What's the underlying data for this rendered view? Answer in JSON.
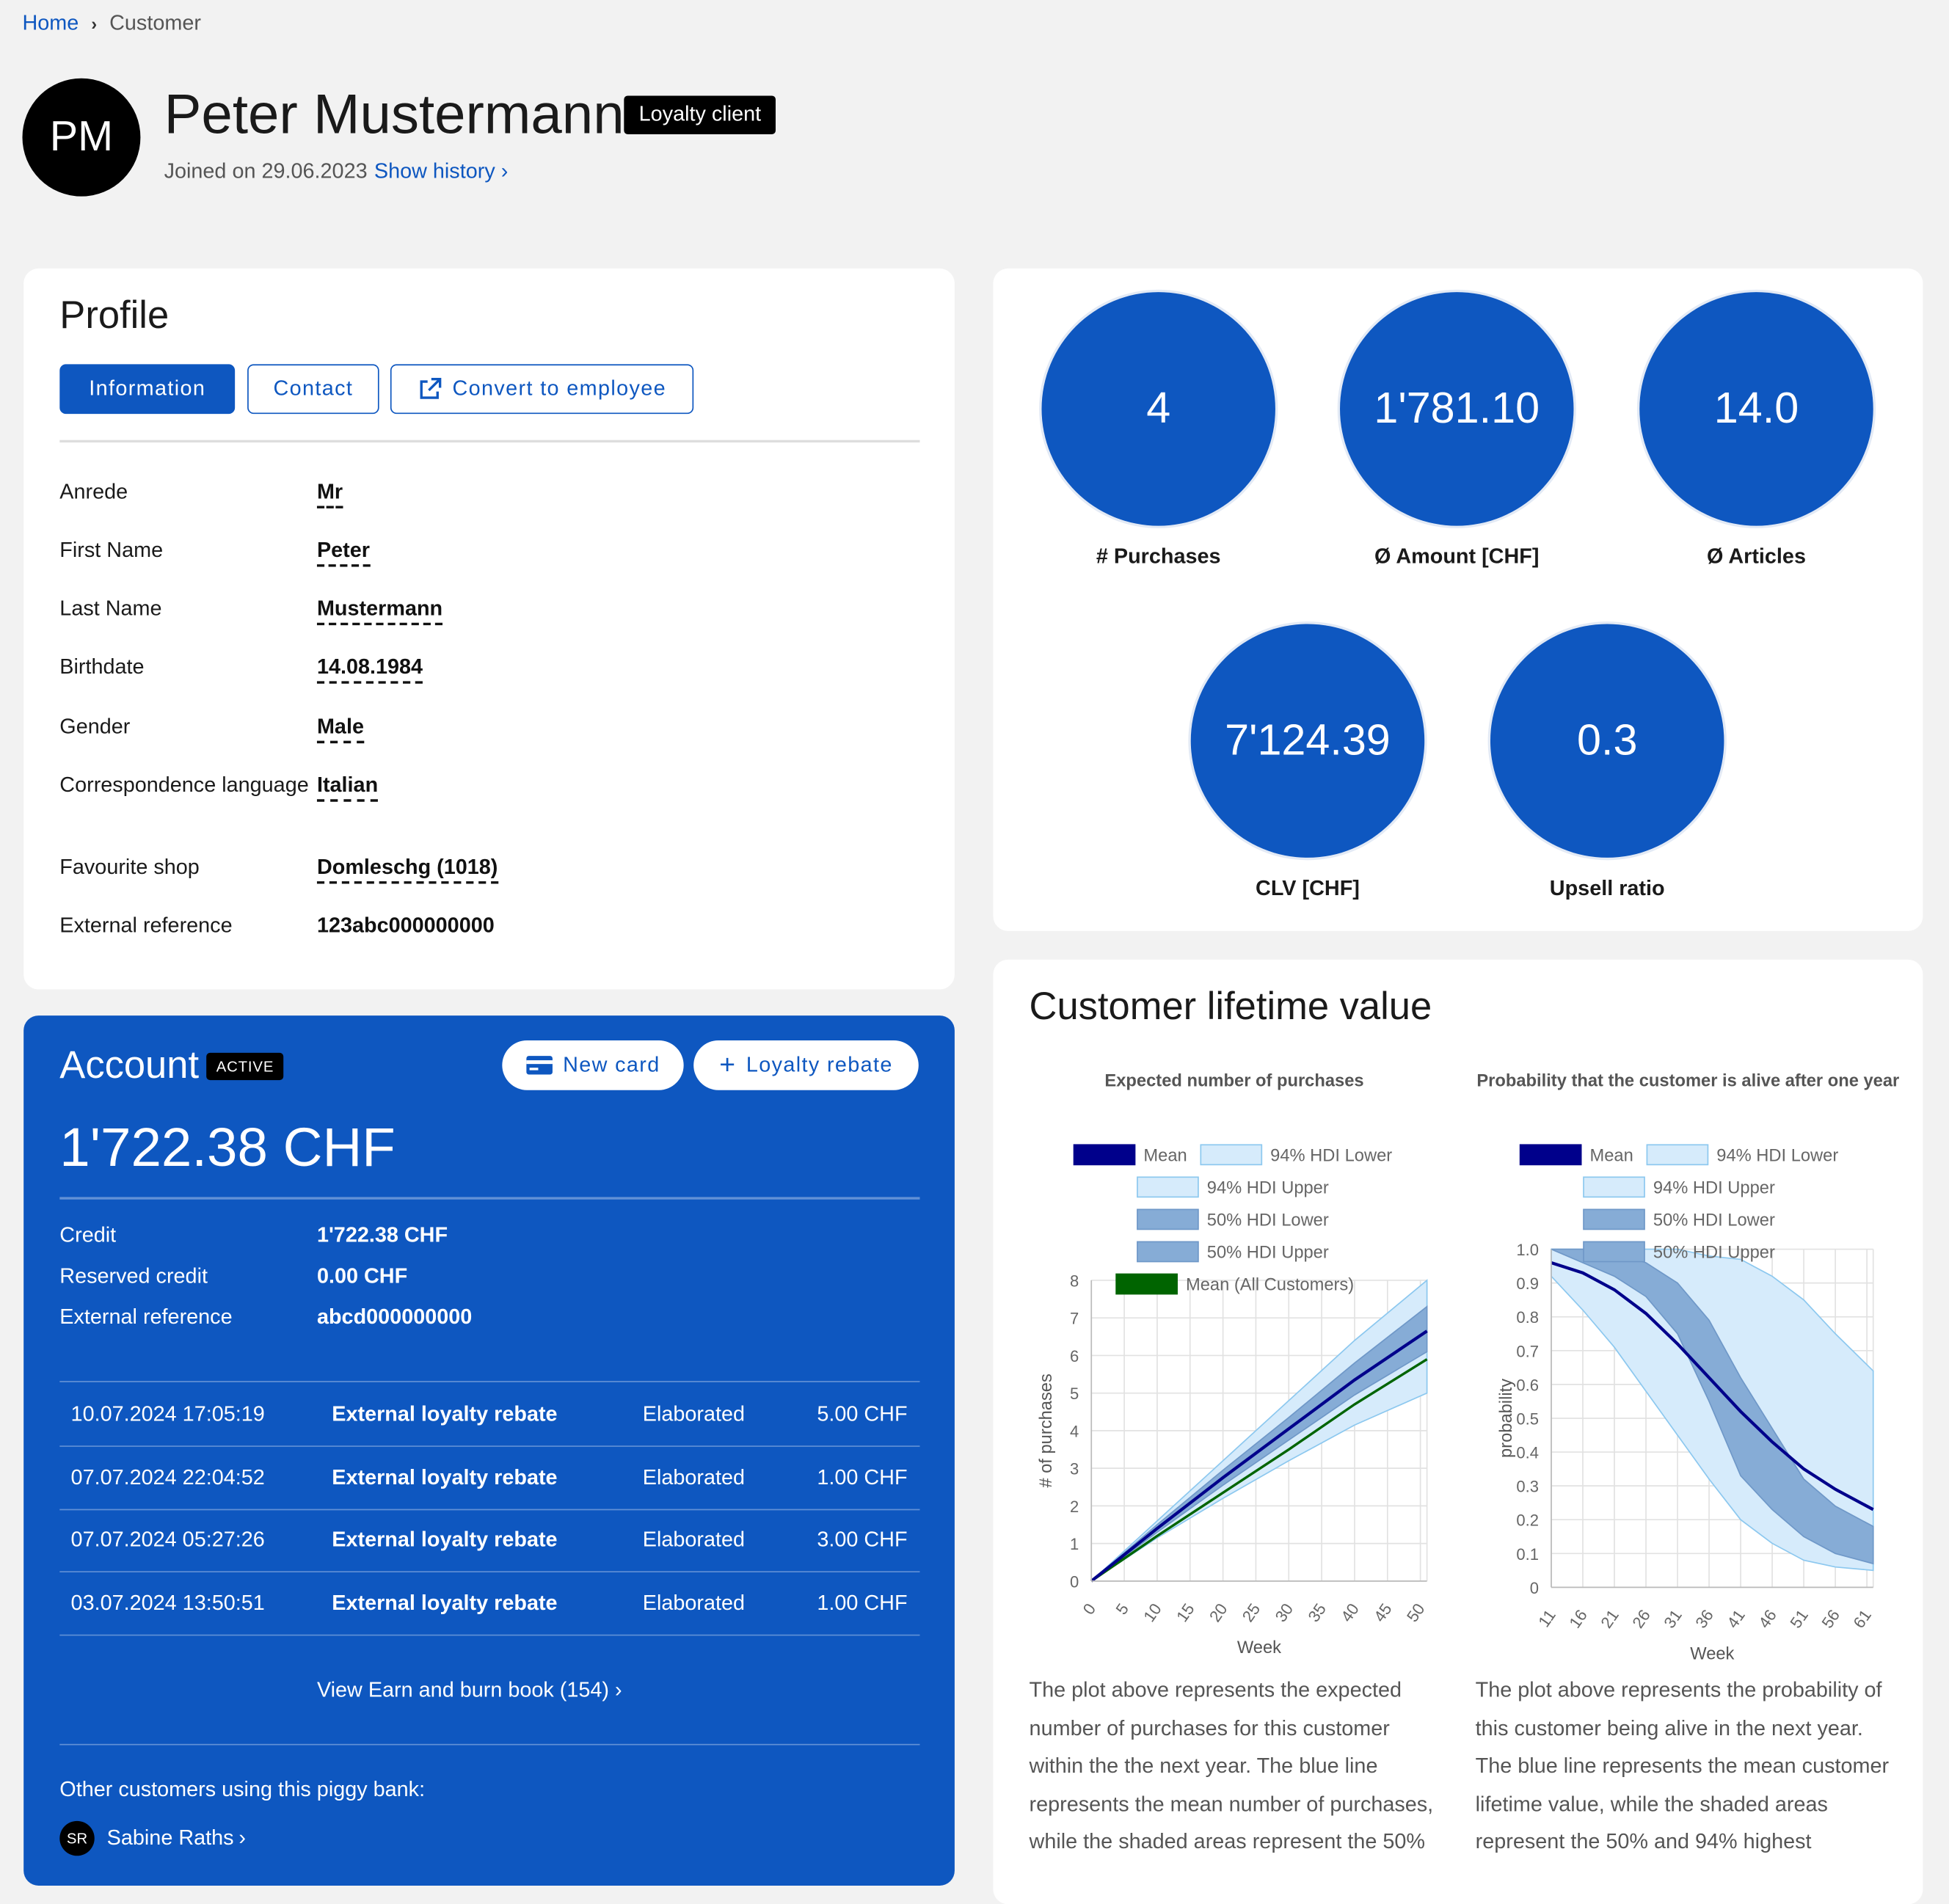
{
  "breadcrumb": {
    "home": "Home",
    "current": "Customer"
  },
  "customer": {
    "initials": "PM",
    "name": "Peter Mustermann",
    "badge": "Loyalty client",
    "joined": "Joined on 29.06.2023",
    "history_link": "Show history"
  },
  "profile": {
    "title": "Profile",
    "tabs": {
      "information": "Information",
      "contact": "Contact",
      "convert": "Convert to employee"
    },
    "fields": [
      {
        "label": "Anrede",
        "value": "Mr"
      },
      {
        "label": "First Name",
        "value": "Peter"
      },
      {
        "label": "Last Name",
        "value": "Mustermann"
      },
      {
        "label": "Birthdate",
        "value": "14.08.1984"
      },
      {
        "label": "Gender",
        "value": "Male"
      },
      {
        "label": "Correspondence language",
        "value": "Italian"
      },
      {
        "label": "Favourite shop",
        "value": "Domleschg (1018)"
      },
      {
        "label": "External reference",
        "value": "123abc000000000"
      }
    ]
  },
  "kpis": [
    {
      "value": "4",
      "label": "# Purchases"
    },
    {
      "value": "1'781.10",
      "label": "Ø Amount [CHF]"
    },
    {
      "value": "14.0",
      "label": "Ø Articles"
    },
    {
      "value": "7'124.39",
      "label": "CLV [CHF]"
    },
    {
      "value": "0.3",
      "label": "Upsell ratio"
    }
  ],
  "account": {
    "title": "Account",
    "status": "ACTIVE",
    "new_card": "New card",
    "loyalty_rebate": "Loyalty rebate",
    "balance": "1'722.38 CHF",
    "details": [
      {
        "label": "Credit",
        "value": "1'722.38 CHF"
      },
      {
        "label": "Reserved credit",
        "value": "0.00 CHF"
      },
      {
        "label": "External reference",
        "value": "abcd000000000"
      }
    ],
    "transactions": [
      {
        "date": "10.07.2024 17:05:19",
        "type": "External loyalty rebate",
        "status": "Elaborated",
        "amount": "5.00 CHF"
      },
      {
        "date": "07.07.2024 22:04:52",
        "type": "External loyalty rebate",
        "status": "Elaborated",
        "amount": "1.00 CHF"
      },
      {
        "date": "07.07.2024 05:27:26",
        "type": "External loyalty rebate",
        "status": "Elaborated",
        "amount": "3.00 CHF"
      },
      {
        "date": "03.07.2024 13:50:51",
        "type": "External loyalty rebate",
        "status": "Elaborated",
        "amount": "1.00 CHF"
      }
    ],
    "earn_burn_link": "View Earn and burn book (154)",
    "other_customers_label": "Other customers using this piggy bank:",
    "other_customer": {
      "initials": "SR",
      "name": "Sabine Raths"
    }
  },
  "clv": {
    "title": "Customer lifetime value",
    "desc_left": "The plot above represents the expected number of purchases for this customer within the the next year. The blue line represents the mean number of purchases, while the shaded areas represent the 50%",
    "desc_right": "The plot above represents the probability of this customer being alive in the next year. The blue line represents the mean customer lifetime value, while the shaded areas represent the 50% and 94% highest"
  },
  "chart_data": [
    {
      "type": "line",
      "title": "Expected number of purchases",
      "xlabel": "Week",
      "ylabel": "# of purchases",
      "xlim": [
        0,
        51
      ],
      "ylim": [
        0,
        8
      ],
      "xticks": [
        0,
        5,
        10,
        15,
        20,
        25,
        30,
        35,
        40,
        45,
        50
      ],
      "yticks": [
        0,
        1,
        2,
        3,
        4,
        5,
        6,
        7,
        8
      ],
      "grid": true,
      "legend_position": "top",
      "legend": [
        "Mean",
        "94% HDI Lower",
        "94% HDI Upper",
        "50% HDI Lower",
        "50% HDI Upper",
        "Mean (All Customers)"
      ],
      "colors": {
        "mean": "#00008b",
        "hdi94": "#d6ebfb",
        "hdi50": "#86acd6",
        "mean_all": "#006400"
      },
      "x": [
        0,
        10,
        20,
        30,
        40,
        51
      ],
      "series": [
        {
          "name": "Mean",
          "values": [
            0,
            1.4,
            2.75,
            4.05,
            5.35,
            6.65
          ]
        },
        {
          "name": "94% HDI Lower",
          "values": [
            0,
            1.15,
            2.2,
            3.2,
            4.15,
            5.0
          ]
        },
        {
          "name": "94% HDI Upper",
          "values": [
            0,
            1.6,
            3.2,
            4.8,
            6.4,
            8.0
          ]
        },
        {
          "name": "50% HDI Lower",
          "values": [
            0,
            1.3,
            2.55,
            3.75,
            4.95,
            6.1
          ]
        },
        {
          "name": "50% HDI Upper",
          "values": [
            0,
            1.5,
            2.95,
            4.35,
            5.8,
            7.3
          ]
        },
        {
          "name": "Mean (All Customers)",
          "values": [
            0,
            1.2,
            2.35,
            3.5,
            4.7,
            5.9
          ]
        }
      ]
    },
    {
      "type": "line",
      "title": "Probability that the customer is alive after one year",
      "xlabel": "Week",
      "ylabel": "probability",
      "xlim": [
        11,
        62
      ],
      "ylim": [
        0,
        1
      ],
      "xticks": [
        11,
        16,
        21,
        26,
        31,
        36,
        41,
        46,
        51,
        56,
        61
      ],
      "yticks": [
        0,
        0.1,
        0.2,
        0.3,
        0.4,
        0.5,
        0.6,
        0.7,
        0.8,
        0.9,
        1.0
      ],
      "grid": true,
      "legend_position": "top",
      "legend": [
        "Mean",
        "94% HDI Lower",
        "94% HDI Upper",
        "50% HDI Lower",
        "50% HDI Upper"
      ],
      "colors": {
        "mean": "#00008b",
        "hdi94": "#d6ebfb",
        "hdi50": "#86acd6"
      },
      "x": [
        11,
        16,
        21,
        26,
        31,
        36,
        41,
        46,
        51,
        56,
        62
      ],
      "series": [
        {
          "name": "Mean",
          "values": [
            0.96,
            0.93,
            0.88,
            0.81,
            0.72,
            0.62,
            0.52,
            0.43,
            0.35,
            0.29,
            0.23
          ]
        },
        {
          "name": "94% HDI Lower",
          "values": [
            0.92,
            0.82,
            0.71,
            0.58,
            0.45,
            0.32,
            0.2,
            0.13,
            0.08,
            0.06,
            0.05
          ]
        },
        {
          "name": "94% HDI Upper",
          "values": [
            1.0,
            1.0,
            1.0,
            1.0,
            1.0,
            0.98,
            0.97,
            0.92,
            0.85,
            0.75,
            0.64
          ]
        },
        {
          "name": "50% HDI Lower",
          "values": [
            1.0,
            0.96,
            0.92,
            0.86,
            0.75,
            0.55,
            0.33,
            0.23,
            0.15,
            0.1,
            0.07
          ]
        },
        {
          "name": "50% HDI Upper",
          "values": [
            1.0,
            1.0,
            0.99,
            0.96,
            0.9,
            0.79,
            0.62,
            0.47,
            0.32,
            0.24,
            0.18
          ]
        }
      ]
    }
  ]
}
